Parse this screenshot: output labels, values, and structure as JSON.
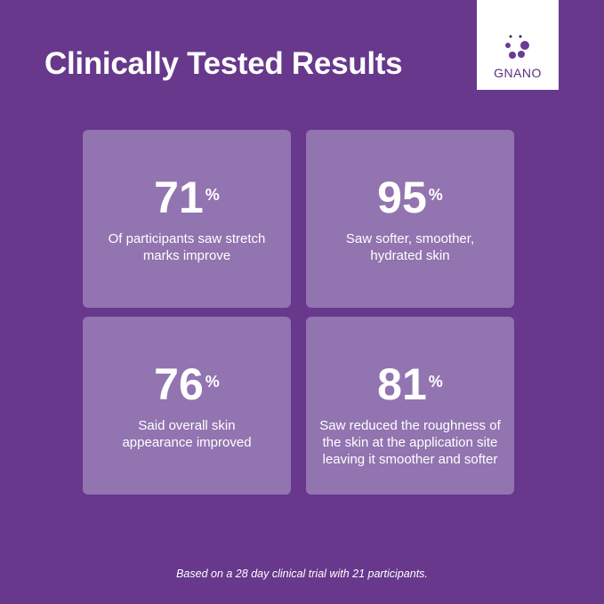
{
  "title": "Clinically Tested Results",
  "logo": {
    "text": "GNANO"
  },
  "colors": {
    "background": "#67388c",
    "card": "#9274b0",
    "text": "#ffffff"
  },
  "stats": [
    {
      "value": "71",
      "unit": "%",
      "description": "Of participants saw stretch marks improve"
    },
    {
      "value": "95",
      "unit": "%",
      "description": "Saw softer, smoother, hydrated skin"
    },
    {
      "value": "76",
      "unit": "%",
      "description": "Said overall skin appearance improved"
    },
    {
      "value": "81",
      "unit": "%",
      "description": "Saw reduced the roughness of the  skin at the application site leaving it smoother and softer"
    }
  ],
  "footnote": "Based on a 28 day clinical trial with 21 participants."
}
